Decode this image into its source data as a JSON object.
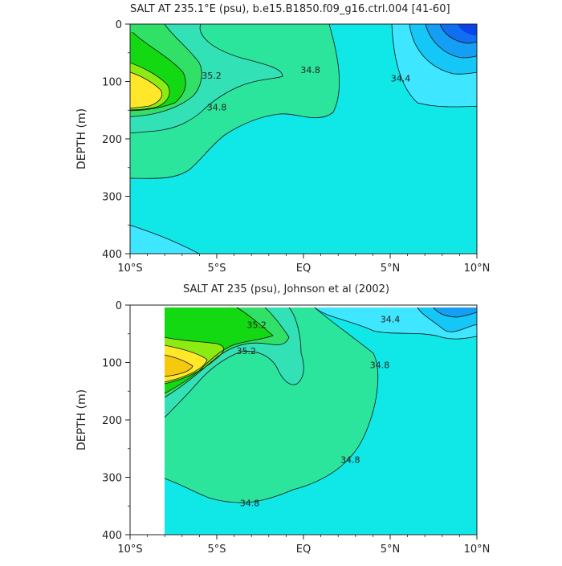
{
  "colors": {
    "light_cyan": "#3fe6ff",
    "aqua": "#10e8e8",
    "green_light": "#2be59c",
    "seafoam": "#33e1b6",
    "green_mid": "#31e066",
    "green": "#12d912",
    "lime": "#8cec12",
    "yellow": "#ffe82a",
    "yellow_orange": "#f4c90e",
    "blue_light": "#15c7f7",
    "blue_mid": "#159ff4",
    "blue": "#0f6ff0",
    "blue_dark": "#0b43e9"
  },
  "chart_data": [
    {
      "type": "heatmap",
      "title": "SALT AT 235.1°E (psu), b.e15.B1850.f09_g16.ctrl.004 [41-60]",
      "ylabel": "DEPTH (m)",
      "x_ticks": [
        "10°S",
        "5°S",
        "EQ",
        "5°N",
        "10°N"
      ],
      "y_ticks": [
        "0",
        "100",
        "200",
        "300",
        "400"
      ],
      "xlim": [
        -10,
        10
      ],
      "ylim": [
        400,
        0
      ],
      "contour_labels": [
        {
          "text": "35.2",
          "x": -5.3,
          "y": 95
        },
        {
          "text": "34.8",
          "x": -5.0,
          "y": 150
        },
        {
          "text": "34.8",
          "x": 0.4,
          "y": 85
        },
        {
          "text": "34.4",
          "x": 5.6,
          "y": 100
        }
      ]
    },
    {
      "type": "heatmap",
      "title": "SALT AT 235 (psu), Johnson et al (2002)",
      "ylabel": "DEPTH (m)",
      "x_ticks": [
        "10°S",
        "5°S",
        "EQ",
        "5°N",
        "10°N"
      ],
      "y_ticks": [
        "0",
        "100",
        "200",
        "300",
        "400"
      ],
      "xlim": [
        -10,
        10
      ],
      "ylim": [
        400,
        0
      ],
      "contour_labels": [
        {
          "text": "35.2",
          "x": -2.7,
          "y": 40
        },
        {
          "text": "35.2",
          "x": -3.3,
          "y": 85
        },
        {
          "text": "34.4",
          "x": 5.0,
          "y": 30
        },
        {
          "text": "34.8",
          "x": 4.4,
          "y": 110
        },
        {
          "text": "34.8",
          "x": 2.7,
          "y": 275
        },
        {
          "text": "34.8",
          "x": -3.1,
          "y": 350
        }
      ]
    }
  ]
}
